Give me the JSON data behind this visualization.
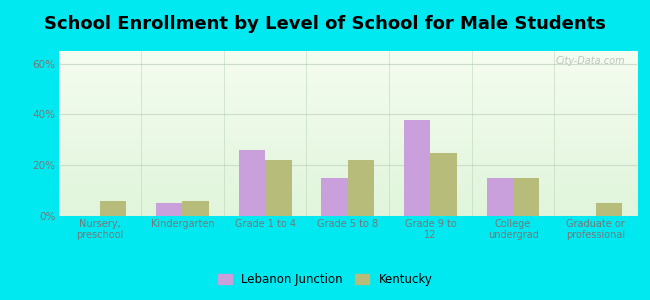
{
  "title": "School Enrollment by Level of School for Male Students",
  "categories": [
    "Nursery,\npreschool",
    "Kindergarten",
    "Grade 1 to 4",
    "Grade 5 to 8",
    "Grade 9 to\n12",
    "College\nundergrad",
    "Graduate or\nprofessional"
  ],
  "lebanon_junction": [
    0,
    5,
    26,
    15,
    38,
    15,
    0
  ],
  "kentucky": [
    6,
    6,
    22,
    22,
    25,
    15,
    5
  ],
  "lj_color": "#c9a0dc",
  "ky_color": "#b8bc7a",
  "background_outer": "#00e8f0",
  "background_inner_top": "#e8f5e2",
  "background_inner_bottom": "#d0edd8",
  "ylim": [
    0,
    65
  ],
  "yticks": [
    0,
    20,
    40,
    60
  ],
  "ytick_labels": [
    "0%",
    "20%",
    "40%",
    "60%"
  ],
  "bar_width": 0.32,
  "title_fontsize": 13,
  "legend_label_lj": "Lebanon Junction",
  "legend_label_ky": "Kentucky",
  "grid_color": "#ccddcc",
  "tick_color": "#777777",
  "watermark": "City-Data.com"
}
